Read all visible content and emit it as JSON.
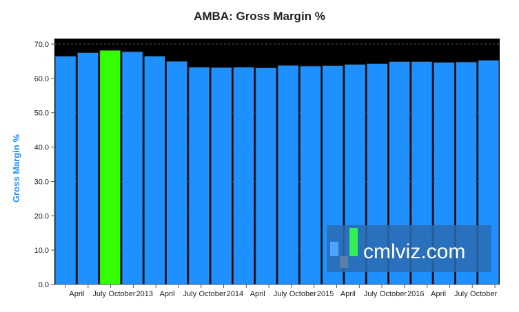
{
  "chart_data": {
    "type": "bar",
    "title": "AMBA: Gross Margin %",
    "ylabel": "Gross Margin %",
    "xlabel": "",
    "ylim": [
      0,
      70
    ],
    "yticks": [
      "0.0",
      "10.0",
      "20.0",
      "30.0",
      "40.0",
      "50.0",
      "60.0",
      "70.0"
    ],
    "grid": true,
    "x_tick_labels": [
      "April",
      "July",
      "October",
      "2013",
      "April",
      "July",
      "October",
      "2014",
      "April",
      "July",
      "October",
      "2015",
      "April",
      "July",
      "October",
      "2016",
      "April",
      "July",
      "October"
    ],
    "values": [
      66.5,
      67.5,
      68.2,
      67.8,
      66.5,
      65.0,
      63.3,
      63.2,
      63.3,
      63.1,
      63.8,
      63.6,
      63.7,
      64.1,
      64.3,
      64.9,
      64.9,
      64.7,
      64.8,
      65.3
    ],
    "highlight_index": 2,
    "colors": {
      "bar": "#1e90ff",
      "highlight": "#33ff00",
      "plot_background": "#000000",
      "ylabel": "#1e90ff"
    }
  },
  "watermark": {
    "text": "cmlviz.com"
  }
}
